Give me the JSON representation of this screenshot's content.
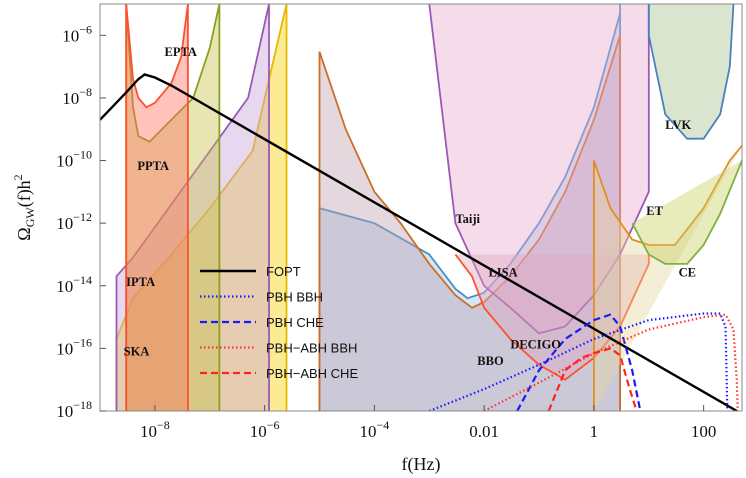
{
  "chart_data": {
    "type": "line",
    "xscale": "log",
    "yscale": "log",
    "xlim": [
      1e-09,
      500
    ],
    "ylim": [
      1e-18,
      1e-05
    ],
    "xlabel": "f(Hz)",
    "ylabel": "Ω_GW(f)h²",
    "ylabel_parts": {
      "omega": "Ω",
      "sub": "GW",
      "rest": "(f)h",
      "sup": "2"
    },
    "x_ticks": [
      {
        "value": 1e-08,
        "base": "10",
        "exp": "−8"
      },
      {
        "value": 1e-06,
        "base": "10",
        "exp": "−6"
      },
      {
        "value": 0.0001,
        "base": "10",
        "exp": "−4"
      },
      {
        "value": 0.01,
        "text": "0.01"
      },
      {
        "value": 1,
        "text": "1"
      },
      {
        "value": 100,
        "text": "100"
      }
    ],
    "y_ticks": [
      {
        "value": 1e-06,
        "base": "10",
        "exp": "−6"
      },
      {
        "value": 1e-08,
        "base": "10",
        "exp": "−8"
      },
      {
        "value": 1e-10,
        "base": "10",
        "exp": "−10"
      },
      {
        "value": 1e-12,
        "base": "10",
        "exp": "−12"
      },
      {
        "value": 1e-14,
        "base": "10",
        "exp": "−14"
      },
      {
        "value": 1e-16,
        "base": "10",
        "exp": "−16"
      },
      {
        "value": 1e-18,
        "base": "10",
        "exp": "−18"
      }
    ],
    "legend_position": "bottom-left",
    "series": [
      {
        "name": "FOPT",
        "color": "#000000",
        "style": "solid",
        "x": [
          1e-09,
          3e-09,
          5e-09,
          6.5e-09,
          1e-08,
          2e-08,
          500
        ],
        "y": [
          2e-09,
          1.5e-08,
          4e-08,
          5.6e-08,
          4.5e-08,
          2.5e-08,
          8e-19
        ]
      },
      {
        "name": "PBH BBH",
        "color": "#1a1aff",
        "style": "dotted",
        "x": [
          0.001,
          0.01,
          0.1,
          1,
          10,
          100,
          200,
          250,
          260,
          270
        ],
        "y": [
          1e-18,
          5e-18,
          3e-17,
          2e-16,
          8e-16,
          1.3e-15,
          1.3e-15,
          5e-16,
          3e-17,
          1e-18
        ]
      },
      {
        "name": "PBH CHE",
        "color": "#1a1aff",
        "style": "dashed",
        "x": [
          0.04,
          0.1,
          0.3,
          1,
          2,
          3,
          5,
          7
        ],
        "y": [
          1e-18,
          2e-17,
          2e-16,
          8e-16,
          1.2e-15,
          5e-16,
          2e-17,
          1e-18
        ]
      },
      {
        "name": "PBH−ABH BBH",
        "color": "#ff3333",
        "style": "dotted",
        "x": [
          0.01,
          0.1,
          1,
          10,
          100,
          250,
          350,
          400,
          420
        ],
        "y": [
          1e-18,
          8e-18,
          7e-17,
          4e-16,
          1e-15,
          1.2e-15,
          4e-16,
          1e-17,
          1e-18
        ]
      },
      {
        "name": "PBH−ABH CHE",
        "color": "#ff2222",
        "style": "dashed",
        "x": [
          0.15,
          0.3,
          0.6,
          1,
          2,
          3,
          4.5,
          6
        ],
        "y": [
          1e-18,
          2e-17,
          5e-17,
          7e-17,
          1e-16,
          6e-17,
          5e-18,
          1e-18
        ]
      }
    ],
    "sensitivity_curves": [
      {
        "name": "SKA",
        "fill": "#f6d200",
        "stroke": "#e8b800",
        "x": [
          2e-09,
          2e-09,
          4e-09,
          2e-08,
          1e-07,
          6e-07,
          2.5e-06,
          2.5e-06
        ],
        "y": [
          1e-18,
          2e-16,
          4e-15,
          1e-13,
          3e-12,
          2e-10,
          1e-05,
          1e-18
        ]
      },
      {
        "name": "IPTA",
        "fill": "#c9a3d9",
        "stroke": "#9b59b6",
        "x": [
          2e-09,
          2e-09,
          4e-09,
          2e-08,
          1e-07,
          5e-07,
          1.2e-06,
          1.2e-06
        ],
        "y": [
          1e-18,
          2e-14,
          8e-14,
          4e-12,
          2e-10,
          1e-08,
          1e-05,
          1e-18
        ]
      },
      {
        "name": "PPTA",
        "fill": "#c5c24a",
        "stroke": "#8aa020",
        "x": [
          3e-09,
          3e-09,
          4e-09,
          5e-09,
          8e-09,
          2e-08,
          5e-08,
          1e-07,
          1.5e-07,
          1.5e-07
        ],
        "y": [
          1e-18,
          1e-05,
          5e-09,
          6e-10,
          4e-10,
          2e-09,
          1e-08,
          4e-07,
          1e-05,
          1e-18
        ]
      },
      {
        "name": "EPTA",
        "fill": "#ff7060",
        "stroke": "#ff5030",
        "x": [
          3e-09,
          3e-09,
          4e-09,
          5e-09,
          7e-09,
          1e-08,
          2e-08,
          3e-08,
          4e-08,
          4e-08
        ],
        "y": [
          1e-18,
          1e-05,
          4e-08,
          1e-08,
          5e-09,
          7e-09,
          3e-08,
          2e-07,
          1e-05,
          1e-18
        ]
      },
      {
        "name": "Taiji",
        "fill": "#9cc6e6",
        "stroke": "#4a90c8",
        "x": [
          1e-05,
          1e-05,
          0.0001,
          0.001,
          0.003,
          0.005,
          0.01,
          0.03,
          0.1,
          0.3,
          1,
          3,
          3,
          3
        ],
        "y": [
          1e-18,
          3e-12,
          1e-12,
          1e-13,
          8e-15,
          4e-15,
          6e-15,
          5e-14,
          1e-12,
          3e-11,
          5e-09,
          5e-06,
          1e-05,
          1e-18
        ]
      },
      {
        "name": "LISA",
        "fill": "#bf9fae",
        "stroke": "#cc6e28",
        "x": [
          1e-05,
          1e-05,
          3e-05,
          0.0001,
          0.0003,
          0.001,
          0.003,
          0.006,
          0.01,
          0.03,
          0.1,
          0.3,
          1,
          3,
          3
        ],
        "y": [
          1e-18,
          3e-07,
          1e-09,
          1e-11,
          1e-12,
          5e-14,
          5e-15,
          2e-15,
          3e-15,
          2e-14,
          3e-13,
          1e-11,
          2e-09,
          1e-06,
          1e-18
        ]
      },
      {
        "name": "DECIGO",
        "fill": "#eaaad0",
        "stroke": "#9b59b6",
        "x": [
          0.001,
          0.003,
          0.01,
          0.03,
          0.1,
          0.3,
          1,
          3,
          10,
          10
        ],
        "y": [
          1e-05,
          1e-12,
          1e-14,
          2e-15,
          3e-16,
          5e-16,
          5e-15,
          1e-13,
          1e-11,
          1e-05
        ]
      },
      {
        "name": "BBO",
        "fill": "#e0a8c0",
        "stroke": "#ff5030",
        "x": [
          0.003,
          0.006,
          0.01,
          0.03,
          0.1,
          0.3,
          1,
          3,
          10,
          10
        ],
        "y": [
          1e-13,
          2e-14,
          2e-15,
          2e-16,
          3e-17,
          1e-17,
          5e-17,
          5e-16,
          5e-14,
          1e-13
        ]
      },
      {
        "name": "ET",
        "fill": "#e8d7a0",
        "stroke": "#e09020",
        "x": [
          1,
          1,
          2,
          5,
          10,
          30,
          100,
          300,
          500
        ],
        "y": [
          1e-18,
          1e-10,
          3e-12,
          3e-13,
          2e-13,
          2e-13,
          3e-12,
          1e-10,
          3e-10
        ]
      },
      {
        "name": "CE",
        "fill": "#c8d060",
        "stroke": "#80b040",
        "x": [
          5,
          10,
          20,
          50,
          100,
          200,
          500
        ],
        "y": [
          1e-12,
          1e-13,
          5e-14,
          5e-14,
          2e-13,
          2e-12,
          1e-10
        ]
      },
      {
        "name": "LVK",
        "fill": "#a8c090",
        "stroke": "#4a80c0",
        "x": [
          10,
          10,
          20,
          50,
          100,
          200,
          300,
          350
        ],
        "y": [
          1e-05,
          1e-06,
          3e-09,
          5e-10,
          5e-10,
          3e-09,
          1e-07,
          1e-05
        ]
      }
    ],
    "region_labels": [
      {
        "text": "EPTA",
        "x": 1.5e-08,
        "y": 2.2e-07
      },
      {
        "text": "PPTA",
        "x": 4.8e-09,
        "y": 5e-11
      },
      {
        "text": "IPTA",
        "x": 3e-09,
        "y": 1e-14
      },
      {
        "text": "SKA",
        "x": 2.7e-09,
        "y": 6e-17
      },
      {
        "text": "Taiji",
        "x": 0.003,
        "y": 1e-12
      },
      {
        "text": "LISA",
        "x": 0.012,
        "y": 2e-14
      },
      {
        "text": "DECIGO",
        "x": 0.03,
        "y": 1e-16
      },
      {
        "text": "BBO",
        "x": 0.0075,
        "y": 3e-17
      },
      {
        "text": "LVK",
        "x": 20,
        "y": 1e-09
      },
      {
        "text": "ET",
        "x": 9,
        "y": 1.8e-12
      },
      {
        "text": "CE",
        "x": 35,
        "y": 2e-14
      }
    ]
  }
}
